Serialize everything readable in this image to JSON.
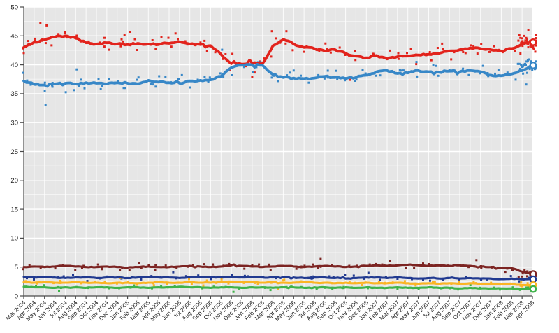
{
  "chart_data": {
    "type": "scatter",
    "subtype": "poll-scatter-with-smoothed-trend-lines",
    "title": "",
    "xlabel": "",
    "ylabel": "",
    "x_categories": [
      "Mar 2004",
      "Apr 2004",
      "May 2004",
      "Jun 2004",
      "Jul 2004",
      "Aug 2004",
      "Sep 2004",
      "Oct 2004",
      "Nov 2004",
      "Dec 2004",
      "Jan 2005",
      "Feb 2005",
      "Mar 2005",
      "Apr 2005",
      "May 2005",
      "Jun 2005",
      "Jul 2005",
      "Aug 2005",
      "Sep 2005",
      "Oct 2005",
      "Nov 2005",
      "Dec 2005",
      "Jan 2006",
      "Feb 2006",
      "Mar 2006",
      "Apr 2006",
      "May 2006",
      "Jun 2006",
      "Jul 2006",
      "Aug 2006",
      "Sep 2006",
      "Oct 2006",
      "Nov 2006",
      "Dec 2006",
      "Jan 2007",
      "Feb 2007",
      "Mar 2007",
      "Apr 2007",
      "May 2007",
      "Jun 2007",
      "Jul 2007",
      "Aug 2007",
      "Sep 2007",
      "Oct 2007",
      "Nov 2007",
      "Dec 2007",
      "Jan 2008",
      "Feb 2008",
      "Mar 2008",
      "Apr 2008"
    ],
    "y_tick_labels": [
      "0",
      "5",
      "10",
      "15",
      "20",
      "25",
      "30",
      "35",
      "40",
      "45",
      "50"
    ],
    "ylim": [
      0,
      50
    ],
    "grid": {
      "major_y_step": 5,
      "minor_y_step": 2.5,
      "vertical_every_month": true
    },
    "legend": "none",
    "layout": {
      "x_tick_rotation": -45,
      "trend_line_end_marker": "open-circle"
    },
    "series": [
      {
        "name": "red",
        "color": "#e2231c",
        "trend": [
          43.0,
          43.9,
          44.3,
          44.8,
          45.0,
          44.6,
          43.8,
          43.6,
          43.8,
          43.6,
          43.5,
          43.7,
          43.6,
          43.5,
          43.7,
          44.0,
          43.6,
          43.5,
          43.3,
          41.8,
          40.2,
          40.1,
          40.3,
          40.2,
          43.3,
          44.4,
          43.6,
          43.0,
          42.8,
          42.4,
          42.6,
          42.0,
          41.5,
          41.2,
          41.6,
          41.0,
          41.4,
          41.5,
          41.7,
          41.8,
          42.0,
          42.4,
          42.6,
          42.9,
          42.8,
          42.6,
          42.4,
          42.8,
          43.6,
          43.9
        ],
        "final_value": 43.9,
        "scatter": {
          "per_month": 2.2,
          "amp": 1.35,
          "end_count": 30,
          "end_amp": 1.4
        },
        "jag": 0.28,
        "outliers": [
          [
            1.6,
            47.2
          ],
          [
            2.2,
            46.8
          ],
          [
            10.2,
            45.7
          ],
          [
            23.9,
            45.8
          ],
          [
            25.3,
            45.8
          ],
          [
            22.0,
            37.9
          ],
          [
            31.4,
            37.4
          ],
          [
            48.6,
            46.0
          ]
        ]
      },
      {
        "name": "blue",
        "color": "#3787c7",
        "trend": [
          37.2,
          36.6,
          36.5,
          36.7,
          36.8,
          36.7,
          36.9,
          36.8,
          36.7,
          36.9,
          36.8,
          36.7,
          37.3,
          37.0,
          36.9,
          36.8,
          37.2,
          37.3,
          37.4,
          38.0,
          39.5,
          39.9,
          40.0,
          39.9,
          38.3,
          37.8,
          37.7,
          37.6,
          37.7,
          38.0,
          37.8,
          37.6,
          37.8,
          38.2,
          38.8,
          39.0,
          38.5,
          38.6,
          39.0,
          38.8,
          38.7,
          38.9,
          38.8,
          39.0,
          38.8,
          38.2,
          38.1,
          38.4,
          39.0,
          39.9
        ],
        "final_value": 39.9,
        "scatter": {
          "per_month": 2.2,
          "amp": 1.25,
          "end_count": 30,
          "end_amp": 1.3
        },
        "jag": 0.28,
        "outliers": [
          [
            2.1,
            33.0
          ],
          [
            19.1,
            42.6
          ],
          [
            5.1,
            39.2
          ],
          [
            48.4,
            36.6
          ]
        ]
      },
      {
        "name": "dark_red",
        "color": "#7c2422",
        "trend": [
          5.0,
          5.1,
          5.0,
          5.1,
          5.2,
          5.1,
          5.0,
          5.0,
          5.1,
          5.0,
          4.9,
          5.0,
          5.1,
          5.0,
          5.0,
          5.1,
          5.2,
          5.1,
          5.0,
          5.1,
          5.3,
          5.2,
          5.1,
          5.0,
          5.1,
          5.2,
          5.1,
          5.0,
          5.1,
          5.2,
          5.1,
          5.0,
          5.1,
          5.2,
          5.3,
          5.2,
          5.3,
          5.4,
          5.3,
          5.2,
          5.3,
          5.2,
          5.3,
          5.2,
          5.1,
          5.0,
          4.9,
          4.8,
          4.2,
          3.8
        ],
        "final_value": 3.8,
        "scatter": {
          "per_month": 1.3,
          "amp": 0.55,
          "end_count": 14,
          "end_amp": 0.6
        },
        "jag": 0.12,
        "outliers": [
          [
            28.6,
            6.4
          ],
          [
            43.6,
            6.2
          ],
          [
            35.3,
            6.1
          ]
        ]
      },
      {
        "name": "dark_blue",
        "color": "#213a90",
        "trend": [
          3.3,
          3.2,
          3.3,
          3.2,
          3.1,
          3.2,
          3.2,
          3.1,
          3.2,
          3.2,
          3.1,
          3.2,
          3.3,
          3.2,
          3.2,
          3.1,
          3.2,
          3.3,
          3.2,
          3.2,
          3.3,
          3.2,
          3.3,
          3.2,
          3.2,
          3.3,
          3.2,
          3.1,
          3.2,
          3.2,
          3.1,
          3.0,
          3.1,
          3.2,
          3.2,
          3.1,
          3.2,
          3.1,
          3.0,
          3.1,
          3.0,
          3.1,
          3.0,
          3.1,
          3.0,
          3.0,
          2.9,
          3.0,
          2.9,
          2.9
        ],
        "final_value": 2.9,
        "scatter": {
          "per_month": 1.1,
          "amp": 0.4,
          "end_count": 10,
          "end_amp": 0.45
        },
        "jag": 0.1,
        "outliers": [
          [
            14.4,
            4.1
          ],
          [
            33.2,
            4.0
          ]
        ]
      },
      {
        "name": "orange",
        "color": "#fbb525",
        "trend": [
          2.4,
          2.3,
          2.4,
          2.3,
          2.3,
          2.4,
          2.3,
          2.3,
          2.2,
          2.3,
          2.3,
          2.2,
          2.3,
          2.4,
          2.3,
          2.3,
          2.4,
          2.3,
          2.3,
          2.4,
          2.5,
          2.4,
          2.4,
          2.3,
          2.4,
          2.3,
          2.3,
          2.4,
          2.3,
          2.3,
          2.2,
          2.3,
          2.2,
          2.3,
          2.2,
          2.2,
          2.3,
          2.2,
          2.1,
          2.2,
          2.1,
          2.2,
          2.1,
          2.2,
          2.1,
          2.0,
          2.1,
          2.0,
          1.9,
          1.9
        ],
        "final_value": 1.9,
        "scatter": {
          "per_month": 1.1,
          "amp": 0.4,
          "end_count": 9,
          "end_amp": 0.4
        },
        "jag": 0.09,
        "outliers": [
          [
            24.5,
            1.2
          ],
          [
            9.3,
            3.1
          ]
        ]
      },
      {
        "name": "green",
        "color": "#3fb24a",
        "trend": [
          1.6,
          1.5,
          1.5,
          1.4,
          1.5,
          1.5,
          1.4,
          1.5,
          1.5,
          1.4,
          1.5,
          1.5,
          1.4,
          1.5,
          1.5,
          1.6,
          1.5,
          1.5,
          1.4,
          1.5,
          1.5,
          1.4,
          1.5,
          1.5,
          1.4,
          1.5,
          1.5,
          1.4,
          1.5,
          1.5,
          1.4,
          1.5,
          1.4,
          1.5,
          1.4,
          1.4,
          1.5,
          1.4,
          1.4,
          1.5,
          1.4,
          1.4,
          1.3,
          1.4,
          1.3,
          1.3,
          1.3,
          1.3,
          1.2,
          1.2
        ],
        "final_value": 1.2,
        "scatter": {
          "per_month": 0.9,
          "amp": 0.3,
          "end_count": 7,
          "end_amp": 0.35
        },
        "jag": 0.08,
        "outliers": [
          [
            20.2,
            0.7
          ],
          [
            3.4,
            0.9
          ]
        ]
      }
    ],
    "styling": {
      "plot_background": "#e6e6e6",
      "grid_major": "#ffffff",
      "grid_minor": "rgba(255,255,255,0.55)",
      "grid_vertical": "rgba(255,255,255,0.85)",
      "axis_line": "#4a4a4a",
      "tick_label_color": "#1f1f1f",
      "end_marker_fill": "#ffffff",
      "page_background": "#ffffff"
    }
  }
}
